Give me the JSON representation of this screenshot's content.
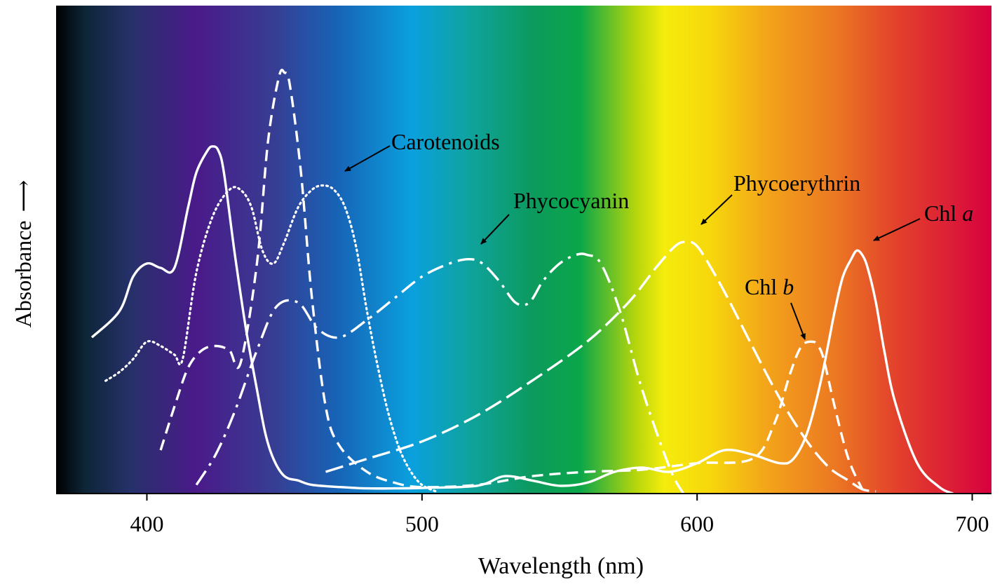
{
  "chart_data": {
    "type": "line",
    "xlabel": "Wavelength (nm)",
    "ylabel": "Absorbance",
    "ylabel_arrow": "⟶",
    "xlim": [
      367,
      707
    ],
    "ylim": [
      0,
      1
    ],
    "xticks": [
      400,
      500,
      600,
      700
    ],
    "xtick_labels": [
      "400",
      "500",
      "600",
      "700"
    ],
    "grid": false,
    "background": "visible-light spectrum gradient",
    "series": [
      {
        "name": "Chl a",
        "style": "solid",
        "x": [
          380,
          390,
          395,
          400,
          405,
          410,
          415,
          418,
          422,
          424,
          426,
          428,
          432,
          436,
          440,
          443,
          446,
          450,
          455,
          460,
          470,
          480,
          490,
          500,
          520,
          530,
          540,
          550,
          560,
          570,
          580,
          590,
          600,
          610,
          620,
          630,
          635,
          640,
          645,
          650,
          653,
          656,
          658,
          660,
          662,
          665,
          668,
          672,
          680,
          688,
          693
        ],
        "y": [
          0.36,
          0.42,
          0.5,
          0.53,
          0.52,
          0.52,
          0.66,
          0.74,
          0.79,
          0.8,
          0.79,
          0.74,
          0.55,
          0.38,
          0.24,
          0.14,
          0.08,
          0.04,
          0.03,
          0.02,
          0.015,
          0.012,
          0.012,
          0.013,
          0.018,
          0.04,
          0.03,
          0.018,
          0.025,
          0.05,
          0.06,
          0.05,
          0.07,
          0.1,
          0.09,
          0.07,
          0.08,
          0.14,
          0.26,
          0.42,
          0.5,
          0.54,
          0.56,
          0.55,
          0.52,
          0.44,
          0.33,
          0.21,
          0.07,
          0.015,
          0.0
        ]
      },
      {
        "name": "Chl b",
        "style": "dashed",
        "x": [
          405,
          410,
          415,
          420,
          425,
          430,
          434,
          440,
          444,
          448,
          450,
          452,
          456,
          460,
          465,
          470,
          480,
          490,
          500,
          520,
          540,
          560,
          580,
          600,
          620,
          628,
          634,
          638,
          642,
          644,
          646,
          650,
          655,
          660
        ],
        "y": [
          0.1,
          0.2,
          0.29,
          0.33,
          0.34,
          0.33,
          0.3,
          0.53,
          0.81,
          0.96,
          0.97,
          0.94,
          0.74,
          0.45,
          0.2,
          0.11,
          0.05,
          0.025,
          0.015,
          0.02,
          0.04,
          0.05,
          0.055,
          0.07,
          0.08,
          0.16,
          0.28,
          0.34,
          0.35,
          0.34,
          0.31,
          0.2,
          0.08,
          0.01
        ]
      },
      {
        "name": "Carotenoids",
        "style": "dotted",
        "x": [
          385,
          390,
          395,
          400,
          405,
          410,
          413,
          418,
          424,
          430,
          434,
          438,
          442,
          446,
          450,
          455,
          460,
          464,
          468,
          472,
          476,
          480,
          484,
          488,
          492,
          496,
          500,
          505
        ],
        "y": [
          0.26,
          0.28,
          0.31,
          0.35,
          0.34,
          0.32,
          0.31,
          0.51,
          0.64,
          0.7,
          0.7,
          0.66,
          0.56,
          0.53,
          0.58,
          0.66,
          0.7,
          0.71,
          0.7,
          0.66,
          0.57,
          0.42,
          0.29,
          0.18,
          0.1,
          0.05,
          0.02,
          0.005
        ]
      },
      {
        "name": "Phycoerythrin",
        "style": "long-dash",
        "x": [
          465,
          480,
          500,
          520,
          540,
          560,
          575,
          585,
          592,
          596,
          600,
          606,
          612,
          620,
          630,
          640,
          648,
          655,
          660,
          665
        ],
        "y": [
          0.05,
          0.08,
          0.12,
          0.18,
          0.26,
          0.35,
          0.44,
          0.52,
          0.57,
          0.58,
          0.57,
          0.51,
          0.44,
          0.34,
          0.22,
          0.12,
          0.06,
          0.03,
          0.01,
          0.005
        ]
      },
      {
        "name": "Phycocyanin",
        "style": "dash-dot",
        "x": [
          418,
          425,
          432,
          440,
          447,
          455,
          462,
          470,
          480,
          490,
          500,
          510,
          517,
          522,
          528,
          534,
          539,
          544,
          550,
          556,
          560,
          565,
          572,
          580,
          590,
          595
        ],
        "y": [
          0.02,
          0.09,
          0.19,
          0.33,
          0.43,
          0.44,
          0.38,
          0.36,
          0.4,
          0.45,
          0.5,
          0.53,
          0.54,
          0.53,
          0.49,
          0.44,
          0.44,
          0.49,
          0.53,
          0.55,
          0.55,
          0.53,
          0.42,
          0.24,
          0.06,
          0.0
        ]
      }
    ],
    "annotations": [
      {
        "name": "Carotenoids",
        "main": "Carotenoids",
        "italic": ""
      },
      {
        "name": "Phycocyanin",
        "main": "Phycocyanin",
        "italic": ""
      },
      {
        "name": "Phycoerythrin",
        "main": "Phycoerythrin",
        "italic": ""
      },
      {
        "name": "Chl a",
        "main": "Chl ",
        "italic": "a"
      },
      {
        "name": "Chl b",
        "main": "Chl ",
        "italic": "b"
      }
    ]
  }
}
